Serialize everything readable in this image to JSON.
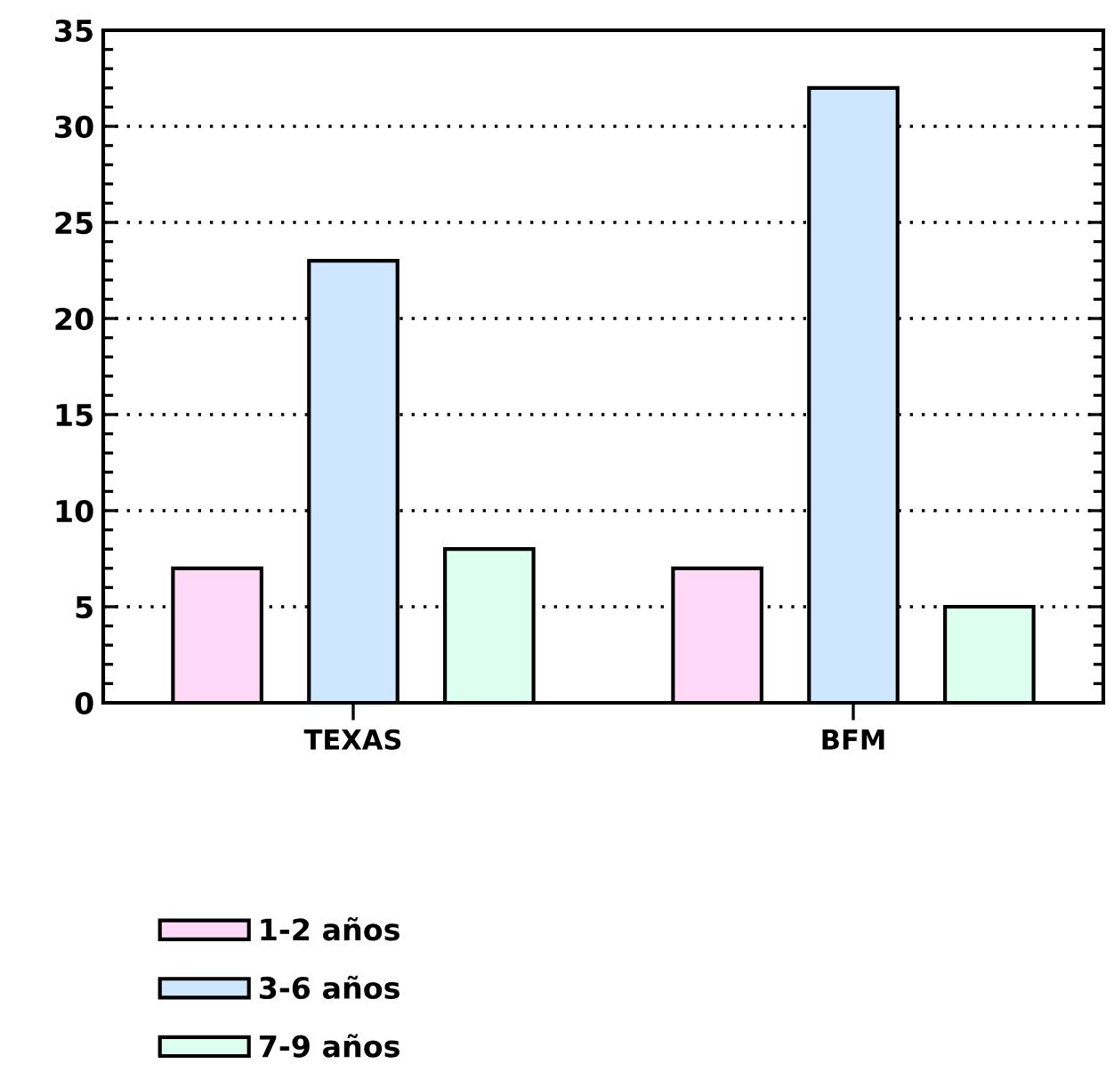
{
  "chart_data": {
    "type": "bar",
    "categories": [
      "TEXAS",
      "BFM"
    ],
    "series": [
      {
        "name": "1-2 años",
        "color": "#ffd9f7",
        "values": [
          7,
          7
        ]
      },
      {
        "name": "3-6 años",
        "color": "#cfe6ff",
        "values": [
          23,
          32
        ]
      },
      {
        "name": "7-9 años",
        "color": "#dcffef",
        "values": [
          8,
          5
        ]
      }
    ],
    "ylim": [
      0,
      35
    ],
    "yticks": [
      0,
      5,
      10,
      15,
      20,
      25,
      30,
      35
    ],
    "grid": "y",
    "line_style": "dotted",
    "legend": "bottom left"
  }
}
